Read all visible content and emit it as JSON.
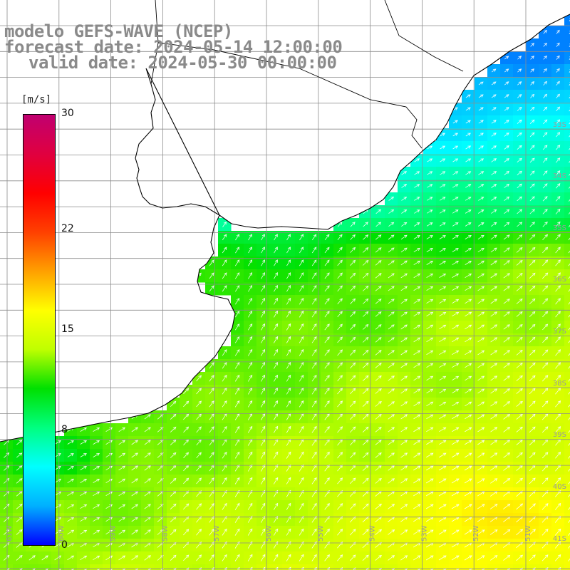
{
  "title": {
    "line1": "modelo GEFS-WAVE (NCEP)",
    "line2": "forecast date: 2024-05-14 12:00:00",
    "line3": "valid date: 2024-05-30 00:00:00"
  },
  "colorbar": {
    "unit": "[m/s]",
    "ticks": [
      "30",
      "22",
      "15",
      "8",
      "0"
    ],
    "tick_values": [
      30,
      22,
      15,
      8,
      0
    ],
    "colors": [
      "#0000ff",
      "#00b0ff",
      "#00ffff",
      "#00ff80",
      "#00e000",
      "#c0ff00",
      "#ffff00",
      "#ffa000",
      "#ff4000",
      "#ff0000",
      "#e00040",
      "#c00070"
    ]
  },
  "map": {
    "lat_labels": [
      "33S",
      "34S",
      "35S",
      "36S",
      "37S",
      "38S",
      "39S",
      "40S",
      "41S"
    ],
    "lon_labels": [
      "61W",
      "60W",
      "59W",
      "58W",
      "57W",
      "56W",
      "55W",
      "54W",
      "53W",
      "52W",
      "51W"
    ],
    "land_color": "#ffffff",
    "coast_color": "#000000",
    "grid_color": "#8c8c8c"
  }
}
